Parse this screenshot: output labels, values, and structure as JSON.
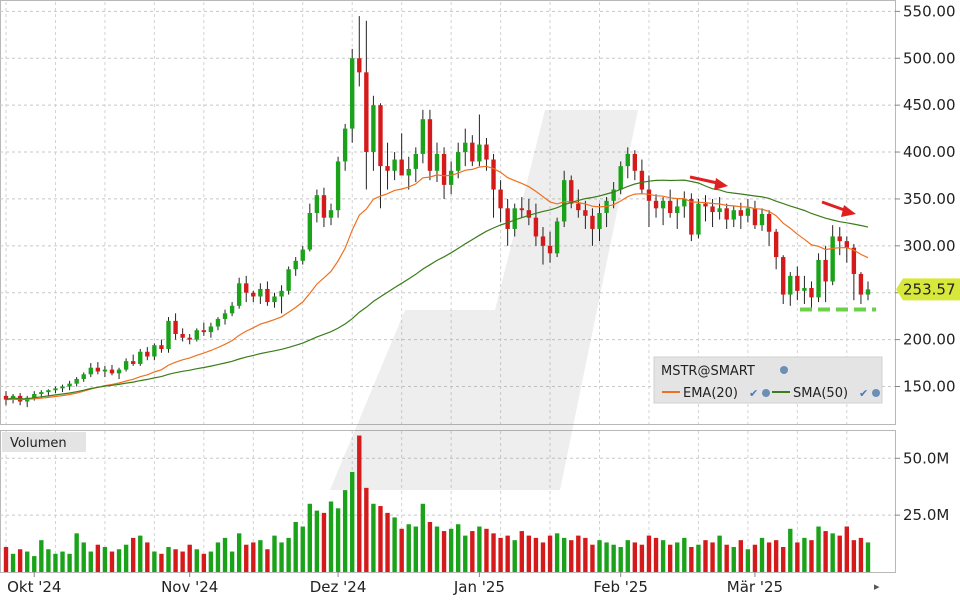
{
  "chart_data": {
    "type": "candlestick",
    "symbol": "MSTR@SMART",
    "last_price": "253.57",
    "price_ticks": [
      "150.00",
      "200.00",
      "250.00",
      "300.00",
      "350.00",
      "400.00",
      "450.00",
      "500.00",
      "550.00"
    ],
    "price_tick_values": [
      150,
      200,
      250,
      300,
      350,
      400,
      450,
      500,
      550
    ],
    "price_range": [
      110,
      560
    ],
    "volume_panel_label": "Volumen",
    "volume_ticks": [
      "25.0M",
      "50.0M"
    ],
    "volume_tick_values": [
      25,
      50
    ],
    "volume_range": [
      0,
      62
    ],
    "x_labels": [
      {
        "label": "Okt '24",
        "index": 4
      },
      {
        "label": "Nov '24",
        "index": 26
      },
      {
        "label": "Dez '24",
        "index": 47
      },
      {
        "label": "Jan '25",
        "index": 67
      },
      {
        "label": "Feb '25",
        "index": 87
      },
      {
        "label": "Mär '25",
        "index": 106
      }
    ],
    "legend": [
      {
        "name": "EMA(20)",
        "color": "#f07020"
      },
      {
        "name": "SMA(50)",
        "color": "#3a7d1a"
      }
    ],
    "colors": {
      "up": "#1aa31a",
      "down": "#d41a1a",
      "ema": "#f07020",
      "sma": "#3a7d1a",
      "annotation_arrow": "#e02020",
      "support_line": "#6bd04a"
    },
    "candles": [
      [
        140,
        145,
        130,
        136
      ],
      [
        136,
        142,
        132,
        140
      ],
      [
        140,
        143,
        130,
        134
      ],
      [
        134,
        140,
        128,
        138
      ],
      [
        138,
        145,
        135,
        142
      ],
      [
        142,
        146,
        138,
        144
      ],
      [
        144,
        147,
        140,
        146
      ],
      [
        146,
        150,
        143,
        148
      ],
      [
        148,
        152,
        144,
        150
      ],
      [
        150,
        156,
        146,
        153
      ],
      [
        153,
        160,
        150,
        158
      ],
      [
        158,
        165,
        155,
        163
      ],
      [
        163,
        175,
        160,
        170
      ],
      [
        170,
        176,
        163,
        166
      ],
      [
        166,
        172,
        160,
        168
      ],
      [
        168,
        173,
        162,
        164
      ],
      [
        164,
        170,
        158,
        168
      ],
      [
        168,
        180,
        166,
        177
      ],
      [
        177,
        184,
        172,
        174
      ],
      [
        174,
        190,
        172,
        187
      ],
      [
        187,
        192,
        178,
        182
      ],
      [
        182,
        196,
        178,
        194
      ],
      [
        194,
        200,
        186,
        190
      ],
      [
        190,
        224,
        186,
        220
      ],
      [
        220,
        228,
        200,
        206
      ],
      [
        206,
        212,
        198,
        202
      ],
      [
        202,
        206,
        195,
        200
      ],
      [
        200,
        212,
        198,
        210
      ],
      [
        210,
        218,
        204,
        208
      ],
      [
        208,
        218,
        202,
        214
      ],
      [
        214,
        224,
        210,
        222
      ],
      [
        222,
        232,
        216,
        228
      ],
      [
        228,
        240,
        225,
        236
      ],
      [
        236,
        266,
        233,
        260
      ],
      [
        260,
        268,
        240,
        250
      ],
      [
        250,
        252,
        240,
        246
      ],
      [
        246,
        260,
        238,
        254
      ],
      [
        254,
        262,
        236,
        240
      ],
      [
        240,
        250,
        234,
        246
      ],
      [
        246,
        258,
        228,
        252
      ],
      [
        252,
        278,
        248,
        275
      ],
      [
        275,
        288,
        268,
        284
      ],
      [
        284,
        300,
        280,
        296
      ],
      [
        296,
        345,
        294,
        335
      ],
      [
        335,
        360,
        325,
        354
      ],
      [
        354,
        362,
        320,
        330
      ],
      [
        330,
        345,
        322,
        338
      ],
      [
        338,
        395,
        330,
        390
      ],
      [
        390,
        430,
        380,
        425
      ],
      [
        425,
        510,
        410,
        500
      ],
      [
        500,
        545,
        470,
        485
      ],
      [
        485,
        540,
        360,
        400
      ],
      [
        400,
        460,
        380,
        450
      ],
      [
        450,
        452,
        340,
        385
      ],
      [
        385,
        410,
        360,
        380
      ],
      [
        380,
        400,
        370,
        392
      ],
      [
        392,
        420,
        378,
        375
      ],
      [
        375,
        395,
        360,
        382
      ],
      [
        382,
        405,
        368,
        398
      ],
      [
        398,
        445,
        388,
        435
      ],
      [
        435,
        445,
        370,
        380
      ],
      [
        380,
        410,
        368,
        398
      ],
      [
        398,
        405,
        350,
        365
      ],
      [
        365,
        390,
        355,
        380
      ],
      [
        380,
        410,
        372,
        400
      ],
      [
        400,
        425,
        385,
        410
      ],
      [
        410,
        418,
        385,
        390
      ],
      [
        390,
        440,
        385,
        408
      ],
      [
        408,
        415,
        380,
        392
      ],
      [
        392,
        398,
        330,
        360
      ],
      [
        360,
        370,
        325,
        340
      ],
      [
        340,
        350,
        300,
        318
      ],
      [
        318,
        345,
        310,
        340
      ],
      [
        340,
        352,
        330,
        338
      ],
      [
        338,
        350,
        322,
        330
      ],
      [
        330,
        345,
        300,
        310
      ],
      [
        310,
        320,
        280,
        300
      ],
      [
        300,
        315,
        282,
        292
      ],
      [
        292,
        330,
        288,
        326
      ],
      [
        326,
        380,
        320,
        370
      ],
      [
        370,
        375,
        340,
        345
      ],
      [
        345,
        360,
        330,
        338
      ],
      [
        338,
        348,
        318,
        332
      ],
      [
        332,
        340,
        300,
        318
      ],
      [
        318,
        345,
        305,
        335
      ],
      [
        335,
        352,
        320,
        348
      ],
      [
        348,
        368,
        340,
        360
      ],
      [
        360,
        390,
        355,
        385
      ],
      [
        385,
        405,
        372,
        398
      ],
      [
        398,
        402,
        370,
        380
      ],
      [
        380,
        392,
        355,
        360
      ],
      [
        360,
        375,
        320,
        348
      ],
      [
        348,
        355,
        330,
        340
      ],
      [
        340,
        352,
        322,
        348
      ],
      [
        348,
        360,
        330,
        335
      ],
      [
        335,
        350,
        318,
        342
      ],
      [
        342,
        358,
        330,
        350
      ],
      [
        350,
        356,
        305,
        312
      ],
      [
        312,
        350,
        308,
        345
      ],
      [
        345,
        354,
        326,
        342
      ],
      [
        342,
        350,
        320,
        336
      ],
      [
        336,
        352,
        328,
        340
      ],
      [
        340,
        345,
        318,
        328
      ],
      [
        328,
        342,
        320,
        338
      ],
      [
        338,
        346,
        318,
        332
      ],
      [
        332,
        350,
        325,
        340
      ],
      [
        340,
        348,
        318,
        322
      ],
      [
        322,
        340,
        316,
        334
      ],
      [
        334,
        338,
        300,
        315
      ],
      [
        315,
        318,
        275,
        288
      ],
      [
        288,
        290,
        238,
        248
      ],
      [
        248,
        272,
        236,
        268
      ],
      [
        268,
        278,
        242,
        252
      ],
      [
        252,
        268,
        238,
        255
      ],
      [
        255,
        262,
        230,
        245
      ],
      [
        245,
        292,
        240,
        285
      ],
      [
        285,
        300,
        240,
        262
      ],
      [
        262,
        322,
        258,
        310
      ],
      [
        310,
        320,
        290,
        305
      ],
      [
        305,
        310,
        282,
        298
      ],
      [
        298,
        302,
        242,
        270
      ],
      [
        270,
        272,
        238,
        248
      ],
      [
        248,
        262,
        242,
        253.57
      ]
    ],
    "volumes": [
      11,
      8,
      10,
      9,
      7,
      14,
      10,
      8,
      9,
      8,
      17,
      13,
      9,
      12,
      11,
      9,
      10,
      12,
      15,
      16,
      13,
      9,
      8,
      11,
      10,
      9,
      12,
      10,
      8,
      9,
      13,
      15,
      9,
      17,
      12,
      13,
      14,
      10,
      16,
      13,
      15,
      22,
      20,
      30,
      27,
      26,
      31,
      28,
      36,
      44,
      60,
      37,
      30,
      29,
      26,
      24,
      19,
      21,
      20,
      30,
      22,
      20,
      18,
      19,
      21,
      16,
      18,
      20,
      19,
      17,
      15,
      16,
      14,
      18,
      16,
      15,
      13,
      16,
      17,
      15,
      14,
      16,
      15,
      12,
      14,
      13,
      12,
      11,
      14,
      13,
      12,
      16,
      15,
      14,
      12,
      13,
      15,
      11,
      12,
      14,
      13,
      16,
      12,
      11,
      14,
      10,
      12,
      15,
      13,
      14,
      11,
      19,
      13,
      15,
      14,
      20,
      18,
      17,
      16,
      20,
      14,
      15,
      13
    ],
    "ema20_annotation": "EMA(20)",
    "sma50_annotation": "SMA(50)"
  }
}
